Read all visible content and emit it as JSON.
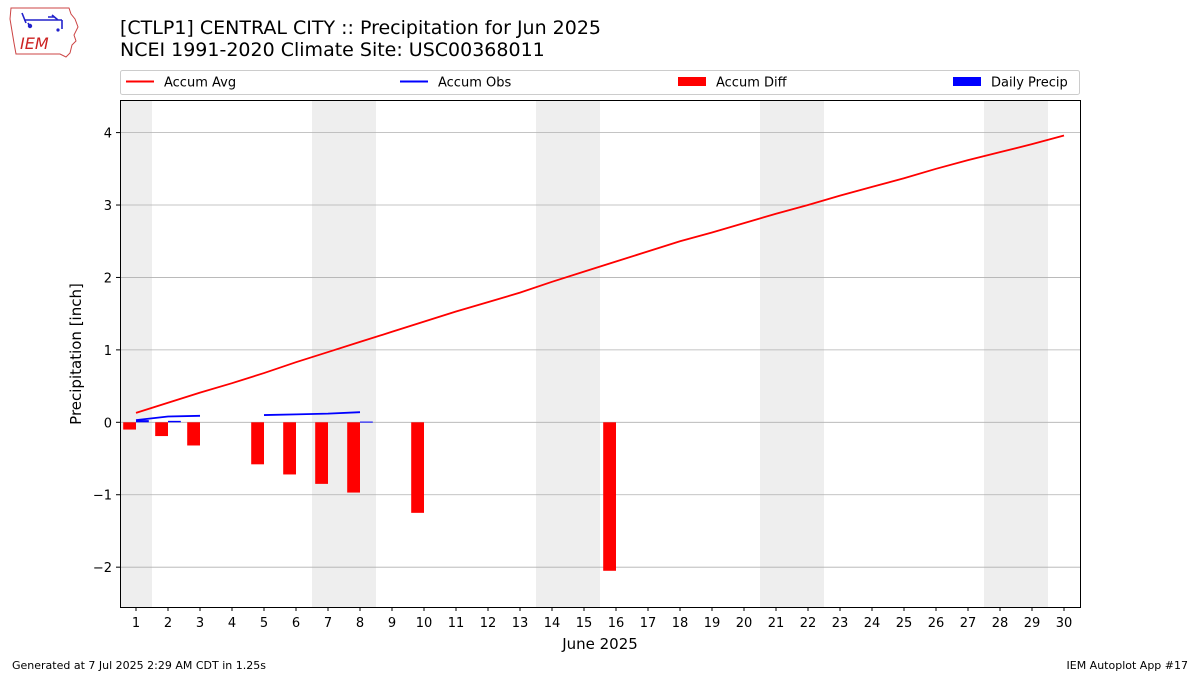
{
  "header": {
    "title": "[CTLP1] CENTRAL CITY :: Precipitation for Jun 2025",
    "subtitle": "NCEI 1991-2020 Climate Site: USC00368011",
    "logo_text": "IEM"
  },
  "footer": {
    "left": "Generated at 7 Jul 2025 2:29 AM CDT in 1.25s",
    "right": "IEM Autoplot App #17"
  },
  "chart_data": {
    "type": "line",
    "title": "[CTLP1] CENTRAL CITY :: Precipitation for Jun 2025",
    "subtitle": "NCEI 1991-2020 Climate Site: USC00368011",
    "xlabel": "June 2025",
    "ylabel": "Precipitation [inch]",
    "xlim": [
      0.5,
      30.5
    ],
    "ylim": [
      -2.55,
      4.45
    ],
    "yticks": [
      -2,
      -1,
      0,
      1,
      2,
      3,
      4
    ],
    "ytick_labels": [
      "−2",
      "−1",
      "0",
      "1",
      "2",
      "3",
      "4"
    ],
    "xticks": [
      1,
      2,
      3,
      4,
      5,
      6,
      7,
      8,
      9,
      10,
      11,
      12,
      13,
      14,
      15,
      16,
      17,
      18,
      19,
      20,
      21,
      22,
      23,
      24,
      25,
      26,
      27,
      28,
      29,
      30
    ],
    "grid": "horizontal",
    "weekend_shading": [
      [
        0.5,
        1.5
      ],
      [
        6.5,
        8.5
      ],
      [
        13.5,
        15.5
      ],
      [
        20.5,
        22.5
      ],
      [
        27.5,
        29.5
      ]
    ],
    "legend": {
      "placement": "top",
      "entries": [
        "Accum Avg",
        "Accum Obs",
        "Accum Diff",
        "Daily Precip"
      ]
    },
    "colors": {
      "accum_avg": "#ff0000",
      "accum_obs": "#0000ff",
      "accum_diff": "#ff0000",
      "daily_precip": "#0000ff",
      "shade": "#eeeeee",
      "grid": "#b0b0b0"
    },
    "series": [
      {
        "name": "Accum Avg",
        "kind": "line",
        "x": [
          1,
          2,
          3,
          4,
          5,
          6,
          7,
          8,
          9,
          10,
          11,
          12,
          13,
          14,
          15,
          16,
          17,
          18,
          19,
          20,
          21,
          22,
          23,
          24,
          25,
          26,
          27,
          28,
          29,
          30
        ],
        "values": [
          0.13,
          0.27,
          0.41,
          0.54,
          0.68,
          0.83,
          0.97,
          1.11,
          1.25,
          1.39,
          1.53,
          1.66,
          1.79,
          1.94,
          2.08,
          2.22,
          2.36,
          2.5,
          2.62,
          2.75,
          2.88,
          3.0,
          3.13,
          3.25,
          3.37,
          3.5,
          3.62,
          3.73,
          3.84,
          3.96
        ]
      },
      {
        "name": "Accum Obs",
        "kind": "line",
        "segments": [
          {
            "x": [
              1,
              2,
              3
            ],
            "values": [
              0.03,
              0.08,
              0.09
            ]
          },
          {
            "x": [
              5,
              6,
              7,
              8
            ],
            "values": [
              0.1,
              0.11,
              0.12,
              0.14
            ]
          }
        ]
      },
      {
        "name": "Accum Diff",
        "kind": "bar",
        "x": [
          0.8,
          1.8,
          2.8,
          4.8,
          5.8,
          6.8,
          7.8,
          9.8,
          15.8
        ],
        "values": [
          -0.1,
          -0.19,
          -0.32,
          -0.58,
          -0.72,
          -0.85,
          -0.97,
          -1.25,
          -2.05
        ]
      },
      {
        "name": "Daily Precip",
        "kind": "bar",
        "x": [
          1.2,
          2.2,
          8.2
        ],
        "values": [
          0.03,
          0.02,
          0.01
        ]
      }
    ]
  }
}
